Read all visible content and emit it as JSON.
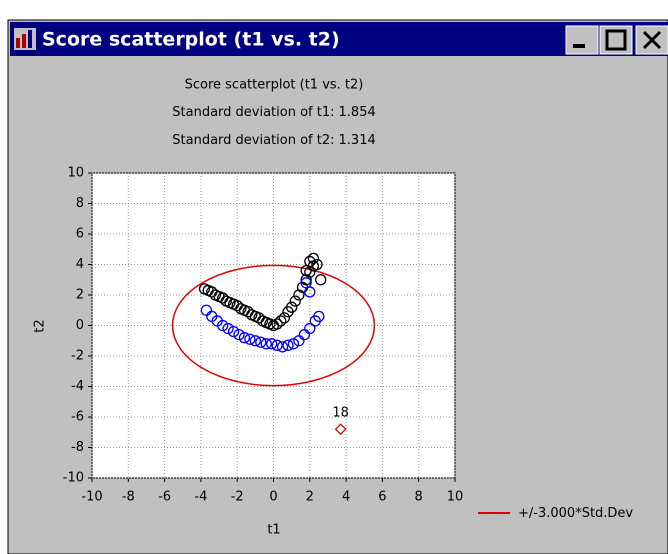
{
  "window": {
    "title": "Score scatterplot (t1 vs. t2)"
  },
  "chart_data": {
    "type": "scatter",
    "title": "Score scatterplot (t1 vs. t2)",
    "stats": [
      {
        "label": "Standard deviation of t1:",
        "value": 1.854
      },
      {
        "label": "Standard deviation of t2:",
        "value": 1.314
      }
    ],
    "x_label": "t1",
    "y_label": "t2",
    "xlim": [
      -10,
      10
    ],
    "ylim": [
      -10,
      10
    ],
    "xticks": [
      -10,
      -8,
      -6,
      -4,
      -2,
      0,
      2,
      4,
      6,
      8,
      10
    ],
    "yticks": [
      -10,
      -8,
      -6,
      -4,
      -2,
      0,
      2,
      4,
      6,
      8,
      10
    ],
    "grid": true,
    "series": [
      {
        "color": "#000000",
        "marker": "circle",
        "x": [
          -3.8,
          -3.6,
          -3.4,
          -3.2,
          -3.0,
          -2.8,
          -2.6,
          -2.4,
          -2.2,
          -2.0,
          -1.8,
          -1.6,
          -1.4,
          -1.2,
          -1.0,
          -0.8,
          -0.6,
          -0.4,
          -0.2,
          0,
          0.2,
          0.4,
          0.6,
          0.8,
          1.0,
          1.2,
          1.4,
          1.6,
          1.8,
          2.0,
          2.0,
          2.2,
          2.2,
          2.4,
          1.8,
          2.6
        ],
        "values": [
          2.4,
          2.3,
          2.2,
          2.0,
          1.9,
          1.8,
          1.6,
          1.5,
          1.4,
          1.3,
          1.1,
          1.0,
          0.9,
          0.7,
          0.6,
          0.5,
          0.3,
          0.2,
          0.1,
          0.0,
          0.1,
          0.3,
          0.5,
          0.9,
          1.2,
          1.6,
          2.0,
          2.5,
          3.0,
          3.5,
          4.2,
          3.9,
          4.4,
          4.0,
          3.6,
          3.0
        ]
      },
      {
        "color": "#0000ff",
        "marker": "circle",
        "x": [
          -3.7,
          -3.4,
          -3.1,
          -2.8,
          -2.5,
          -2.2,
          -1.9,
          -1.6,
          -1.3,
          -1.0,
          -0.7,
          -0.4,
          -0.1,
          0.2,
          0.5,
          0.8,
          1.1,
          1.4,
          1.7,
          2.0,
          2.3,
          2.5,
          1.8,
          2.0
        ],
        "values": [
          1.0,
          0.6,
          0.3,
          0.0,
          -0.2,
          -0.4,
          -0.6,
          -0.8,
          -0.9,
          -1.0,
          -1.1,
          -1.2,
          -1.2,
          -1.3,
          -1.4,
          -1.3,
          -1.2,
          -1.0,
          -0.6,
          -0.2,
          0.3,
          0.6,
          2.8,
          2.2
        ]
      },
      {
        "color": "#e00000",
        "marker": "diamond",
        "x": [
          3.7
        ],
        "values": [
          -6.8
        ],
        "labels": [
          "18"
        ]
      }
    ],
    "ellipse": {
      "prefix": "+/-",
      "k": {
        "value": 3,
        "label": "3.000"
      },
      "suffix": "*Std.Dev",
      "color": "#e00000"
    }
  }
}
